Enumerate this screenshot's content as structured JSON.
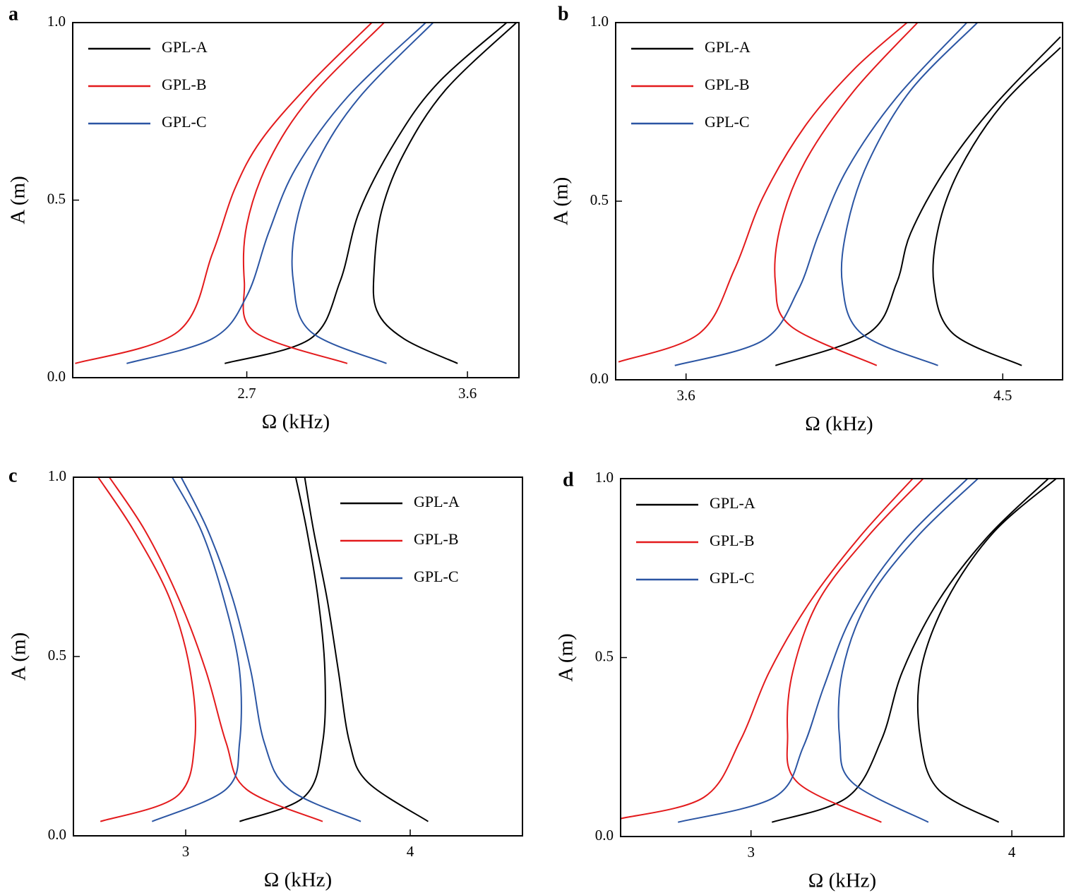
{
  "chart_data": [
    {
      "type": "line",
      "label": "a",
      "xlabel": "Ω (kHz)",
      "ylabel": "A (m)",
      "xlim": [
        1.99,
        3.81
      ],
      "ylim": [
        0,
        1
      ],
      "xticks": [
        2.7,
        3.6
      ],
      "yticks": [
        {
          "value": 0,
          "label": "0.0"
        },
        {
          "value": 0.5,
          "label": "0.5"
        },
        {
          "value": 1,
          "label": "1.0"
        }
      ],
      "legend": "upper left",
      "series": [
        {
          "name": "GPL-A",
          "color": "#000000",
          "curves": [
            {
              "x": [
                2.61,
                2.96,
                3.08,
                3.16,
                3.31,
                3.48,
                3.76
              ],
              "values": [
                0.04,
                0.11,
                0.27,
                0.47,
                0.67,
                0.83,
                1.0
              ]
            },
            {
              "x": [
                3.56,
                3.34,
                3.23,
                3.22,
                3.25,
                3.34,
                3.51,
                3.8
              ],
              "values": [
                0.04,
                0.11,
                0.19,
                0.31,
                0.47,
                0.63,
                0.81,
                1.0
              ]
            }
          ]
        },
        {
          "name": "GPL-B",
          "color": "#e31a1c",
          "curves": [
            {
              "x": [
                2.0,
                2.42,
                2.56,
                2.65,
                2.76,
                2.96,
                3.21
              ],
              "values": [
                0.04,
                0.13,
                0.35,
                0.53,
                0.67,
                0.83,
                1.0
              ]
            },
            {
              "x": [
                3.11,
                2.73,
                2.69,
                2.7,
                2.79,
                2.96,
                3.26
              ],
              "values": [
                0.04,
                0.13,
                0.27,
                0.43,
                0.61,
                0.79,
                1.0
              ]
            }
          ]
        },
        {
          "name": "GPL-C",
          "color": "#2b55a3",
          "curves": [
            {
              "x": [
                2.21,
                2.56,
                2.7,
                2.79,
                2.9,
                3.11,
                3.43
              ],
              "values": [
                0.04,
                0.11,
                0.23,
                0.41,
                0.59,
                0.79,
                1.0
              ]
            },
            {
              "x": [
                3.27,
                2.96,
                2.89,
                2.9,
                2.99,
                3.16,
                3.46
              ],
              "values": [
                0.04,
                0.13,
                0.27,
                0.43,
                0.61,
                0.79,
                1.0
              ]
            }
          ]
        }
      ]
    },
    {
      "type": "line",
      "label": "b",
      "xlabel": "Ω (kHz)",
      "ylabel": "A (m)",
      "xlim": [
        3.4,
        4.67
      ],
      "ylim": [
        0,
        1
      ],
      "xticks": [
        3.6,
        4.5
      ],
      "yticks": [
        {
          "value": 0,
          "label": "0.0"
        },
        {
          "value": 0.5,
          "label": "0.5"
        },
        {
          "value": 1,
          "label": "1.0"
        }
      ],
      "legend": "upper left",
      "series": [
        {
          "name": "GPL-A",
          "color": "#000000",
          "curves": [
            {
              "x": [
                3.854,
                4.118,
                4.198,
                4.238,
                4.338,
                4.478,
                4.664
              ],
              "values": [
                0.04,
                0.13,
                0.27,
                0.41,
                0.59,
                0.77,
                0.96
              ]
            },
            {
              "x": [
                4.554,
                4.358,
                4.304,
                4.318,
                4.378,
                4.498,
                4.664
              ],
              "values": [
                0.04,
                0.13,
                0.27,
                0.43,
                0.59,
                0.77,
                0.93
              ]
            }
          ]
        },
        {
          "name": "GPL-B",
          "color": "#e31a1c",
          "curves": [
            {
              "x": [
                3.408,
                3.638,
                3.738,
                3.818,
                3.938,
                4.078,
                4.228
              ],
              "values": [
                0.05,
                0.13,
                0.31,
                0.51,
                0.71,
                0.87,
                1.0
              ]
            },
            {
              "x": [
                4.142,
                3.898,
                3.854,
                3.868,
                3.938,
                4.078,
                4.258
              ],
              "values": [
                0.04,
                0.15,
                0.27,
                0.43,
                0.61,
                0.81,
                1.0
              ]
            }
          ]
        },
        {
          "name": "GPL-C",
          "color": "#2b55a3",
          "curves": [
            {
              "x": [
                3.568,
                3.818,
                3.918,
                3.978,
                4.058,
                4.198,
                4.398
              ],
              "values": [
                0.04,
                0.11,
                0.25,
                0.41,
                0.59,
                0.79,
                1.0
              ]
            },
            {
              "x": [
                4.316,
                4.098,
                4.044,
                4.058,
                4.118,
                4.238,
                4.428
              ],
              "values": [
                0.04,
                0.13,
                0.27,
                0.43,
                0.61,
                0.81,
                1.0
              ]
            }
          ]
        }
      ]
    },
    {
      "type": "line",
      "label": "c",
      "xlabel": "Ω (kHz)",
      "ylabel": "A (m)",
      "xlim": [
        2.5,
        4.5
      ],
      "ylim": [
        0,
        1
      ],
      "xticks": [
        3,
        4
      ],
      "yticks": [
        {
          "value": 0,
          "label": "0.0"
        },
        {
          "value": 0.5,
          "label": "0.5"
        },
        {
          "value": 1,
          "label": "1.0"
        }
      ],
      "legend": "upper right",
      "series": [
        {
          "name": "GPL-A",
          "color": "#000000",
          "curves": [
            {
              "x": [
                3.24,
                3.53,
                3.61,
                3.62,
                3.59,
                3.54,
                3.49
              ],
              "values": [
                0.04,
                0.11,
                0.26,
                0.46,
                0.66,
                0.85,
                1.0
              ]
            },
            {
              "x": [
                4.08,
                3.81,
                3.73,
                3.68,
                3.63,
                3.57,
                3.53
              ],
              "values": [
                0.04,
                0.15,
                0.26,
                0.46,
                0.66,
                0.85,
                1.0
              ]
            }
          ]
        },
        {
          "name": "GPL-B",
          "color": "#e31a1c",
          "curves": [
            {
              "x": [
                2.62,
                2.96,
                3.04,
                3.02,
                2.93,
                2.77,
                2.61
              ],
              "values": [
                0.04,
                0.11,
                0.26,
                0.46,
                0.66,
                0.85,
                1.0
              ]
            },
            {
              "x": [
                3.61,
                3.27,
                3.18,
                3.09,
                2.97,
                2.82,
                2.66
              ],
              "values": [
                0.04,
                0.13,
                0.26,
                0.46,
                0.66,
                0.85,
                1.0
              ]
            }
          ]
        },
        {
          "name": "GPL-C",
          "color": "#2b55a3",
          "curves": [
            {
              "x": [
                2.85,
                3.18,
                3.24,
                3.24,
                3.17,
                3.07,
                2.94
              ],
              "values": [
                0.04,
                0.13,
                0.26,
                0.46,
                0.66,
                0.85,
                1.0
              ]
            },
            {
              "x": [
                3.78,
                3.46,
                3.35,
                3.29,
                3.21,
                3.1,
                2.98
              ],
              "values": [
                0.04,
                0.13,
                0.26,
                0.46,
                0.66,
                0.85,
                1.0
              ]
            }
          ]
        }
      ]
    },
    {
      "type": "line",
      "label": "d",
      "xlabel": "Ω (kHz)",
      "ylabel": "A (m)",
      "xlim": [
        2.5,
        4.2
      ],
      "ylim": [
        0,
        1
      ],
      "xticks": [
        3,
        4
      ],
      "yticks": [
        {
          "value": 0,
          "label": "0.0"
        },
        {
          "value": 0.5,
          "label": "0.5"
        },
        {
          "value": 1,
          "label": "1.0"
        }
      ],
      "legend": "upper left",
      "series": [
        {
          "name": "GPL-A",
          "color": "#000000",
          "curves": [
            {
              "x": [
                3.08,
                3.37,
                3.5,
                3.58,
                3.72,
                3.91,
                4.14
              ],
              "values": [
                0.04,
                0.11,
                0.27,
                0.46,
                0.66,
                0.84,
                1.0
              ]
            },
            {
              "x": [
                3.95,
                3.72,
                3.65,
                3.65,
                3.75,
                3.93,
                4.17
              ],
              "values": [
                0.04,
                0.13,
                0.27,
                0.46,
                0.66,
                0.85,
                1.0
              ]
            }
          ]
        },
        {
          "name": "GPL-B",
          "color": "#e31a1c",
          "curves": [
            {
              "x": [
                2.5,
                2.82,
                2.96,
                3.07,
                3.23,
                3.42,
                3.62
              ],
              "values": [
                0.05,
                0.11,
                0.27,
                0.46,
                0.66,
                0.84,
                1.0
              ]
            },
            {
              "x": [
                3.5,
                3.18,
                3.14,
                3.16,
                3.26,
                3.45,
                3.66
              ],
              "values": [
                0.04,
                0.15,
                0.29,
                0.46,
                0.66,
                0.84,
                1.0
              ]
            }
          ]
        },
        {
          "name": "GPL-C",
          "color": "#2b55a3",
          "curves": [
            {
              "x": [
                2.72,
                3.09,
                3.2,
                3.28,
                3.39,
                3.58,
                3.83
              ],
              "values": [
                0.04,
                0.11,
                0.25,
                0.42,
                0.62,
                0.82,
                1.0
              ]
            },
            {
              "x": [
                3.68,
                3.39,
                3.34,
                3.35,
                3.45,
                3.64,
                3.87
              ],
              "values": [
                0.04,
                0.15,
                0.27,
                0.46,
                0.66,
                0.84,
                1.0
              ]
            }
          ]
        }
      ]
    }
  ]
}
